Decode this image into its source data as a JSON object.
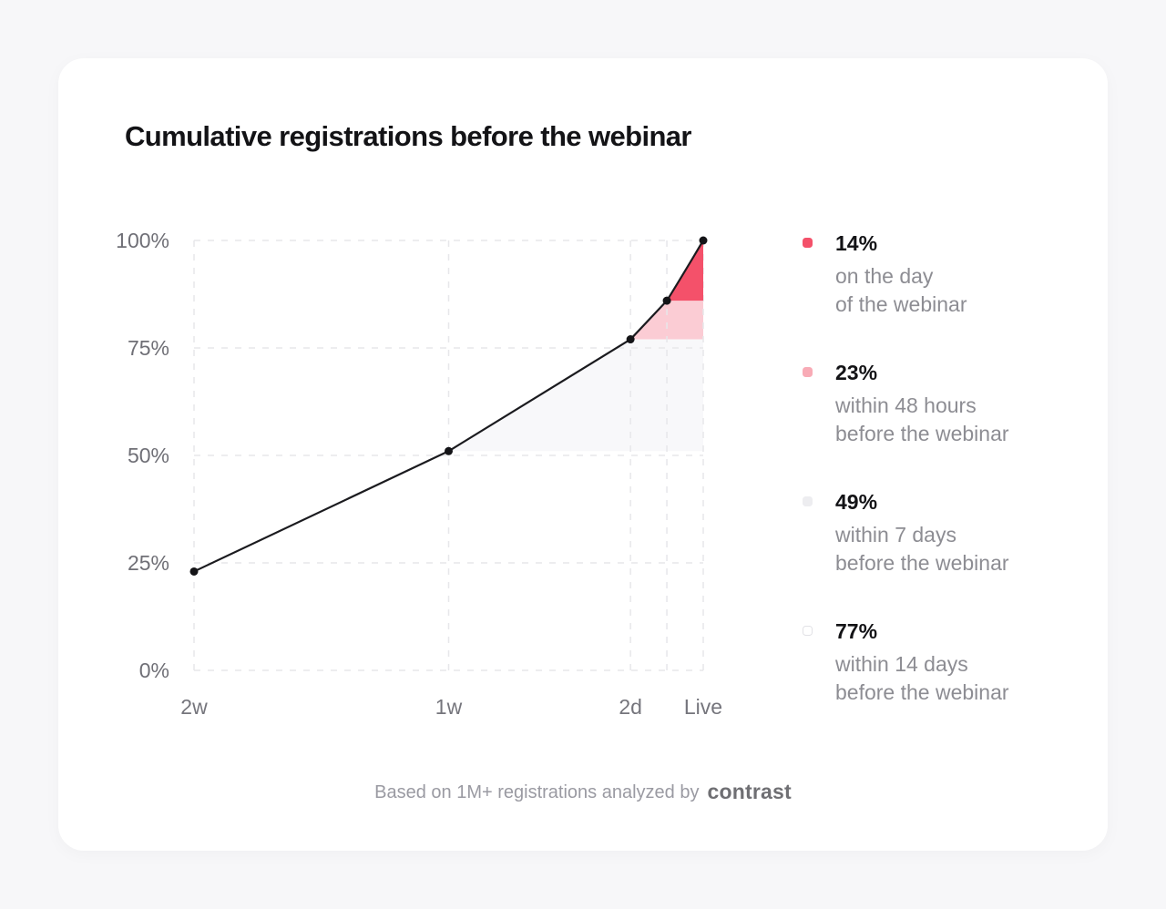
{
  "page": {
    "background": "#f7f7f9",
    "card_background": "#ffffff"
  },
  "header": {
    "title": "Cumulative registrations before the webinar"
  },
  "chart_data": {
    "type": "area",
    "title": "Cumulative registrations before the webinar",
    "xlabel": "",
    "ylabel": "",
    "ylim": [
      0,
      100
    ],
    "x_axis_unit": "time before the webinar",
    "grid": "dashed",
    "legend_position": "right",
    "y_ticks": [
      {
        "label": "0%",
        "value": 0
      },
      {
        "label": "25%",
        "value": 25
      },
      {
        "label": "50%",
        "value": 50
      },
      {
        "label": "75%",
        "value": 75
      },
      {
        "label": "100%",
        "value": 100
      }
    ],
    "x_ticks": [
      {
        "label": "2w",
        "days_before": 14
      },
      {
        "label": "1w",
        "days_before": 7
      },
      {
        "label": "2d",
        "days_before": 2
      },
      {
        "label": "Live",
        "days_before": 0
      }
    ],
    "series": [
      {
        "name": "Cumulative registrations",
        "line_color": "#1b1b1f",
        "point_color": "#141417",
        "points": [
          {
            "x_days_before": 14,
            "y_pct": 23
          },
          {
            "x_days_before": 7,
            "y_pct": 51
          },
          {
            "x_days_before": 2,
            "y_pct": 77
          },
          {
            "x_days_before": 1,
            "y_pct": 86
          },
          {
            "x_days_before": 0,
            "y_pct": 100
          }
        ]
      }
    ],
    "bands": [
      {
        "name": "within 7 days",
        "from_pct": 51,
        "to_pct": 77,
        "start_days_before": 7,
        "fill": "#f8f8fa"
      },
      {
        "name": "within 48 hours",
        "from_pct": 77,
        "to_pct": 86,
        "start_days_before": 2,
        "fill": "#fbccd4"
      },
      {
        "name": "on the day",
        "from_pct": 86,
        "to_pct": 100,
        "start_days_before": 1,
        "fill": "#f4516a"
      }
    ],
    "grid_color": "#e7e7ea"
  },
  "legend": {
    "items": [
      {
        "value": "14%",
        "lines": [
          "on the day",
          "of the webinar"
        ],
        "swatch_color": "#f4516a",
        "swatch_border": ""
      },
      {
        "value": "23%",
        "lines": [
          "within 48 hours",
          "before the webinar"
        ],
        "swatch_color": "#f8abb6",
        "swatch_border": ""
      },
      {
        "value": "49%",
        "lines": [
          "within 7 days",
          "before the webinar"
        ],
        "swatch_color": "#ededf0",
        "swatch_border": ""
      },
      {
        "value": "77%",
        "lines": [
          "within 14 days",
          "before the webinar"
        ],
        "swatch_color": "#ffffff",
        "swatch_border": "#e2e2e6"
      }
    ]
  },
  "footer": {
    "text": "Based on 1M+ registrations analyzed by",
    "brand": "contrast"
  }
}
